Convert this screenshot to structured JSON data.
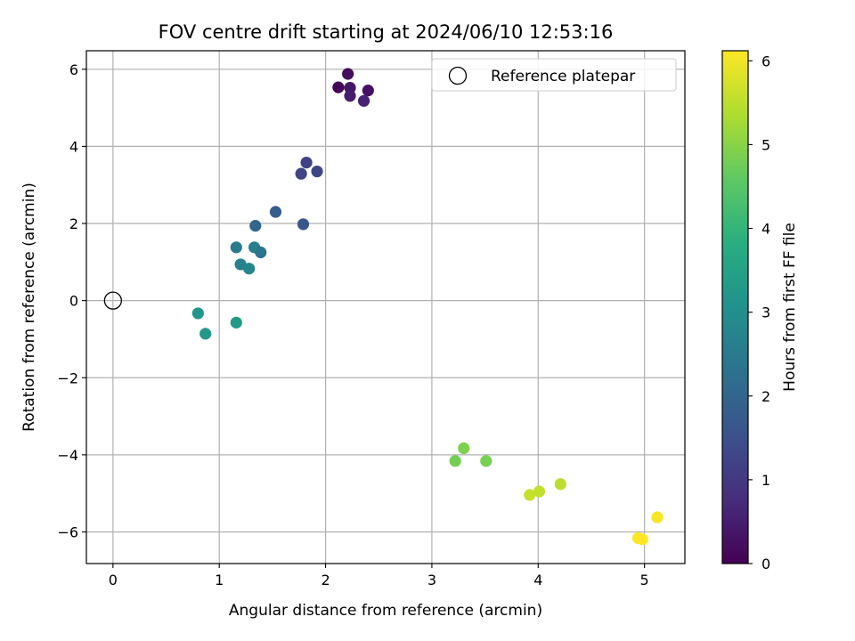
{
  "chart_data": {
    "type": "scatter",
    "title": "FOV centre drift starting at 2024/06/10 12:53:16",
    "xlabel": "Angular distance from reference (arcmin)",
    "ylabel": "Rotation from reference (arcmin)",
    "xlim": [
      -0.25,
      5.38
    ],
    "ylim": [
      -6.82,
      6.48
    ],
    "xticks": [
      0,
      1,
      2,
      3,
      4,
      5
    ],
    "yticks": [
      -6,
      -4,
      -2,
      0,
      2,
      4,
      6
    ],
    "xtick_labels": [
      "0",
      "1",
      "2",
      "3",
      "4",
      "5"
    ],
    "ytick_labels": [
      "−6",
      "−4",
      "−2",
      "0",
      "2",
      "4",
      "6"
    ],
    "grid": true,
    "legend": {
      "position": "top-right",
      "label": "Reference platepar"
    },
    "reference_point": {
      "x": 0,
      "y": 0
    },
    "colormap": "viridis",
    "colorbar": {
      "label": "Hours from first FF file",
      "range": [
        0,
        6.12
      ],
      "ticks": [
        0,
        1,
        2,
        3,
        4,
        5,
        6
      ],
      "tick_labels": [
        "0",
        "1",
        "2",
        "3",
        "4",
        "5",
        "6"
      ]
    },
    "points": [
      {
        "x": 2.12,
        "y": 5.53,
        "hours": 0.05
      },
      {
        "x": 2.21,
        "y": 5.88,
        "hours": 0.2
      },
      {
        "x": 2.23,
        "y": 5.52,
        "hours": 0.35
      },
      {
        "x": 2.4,
        "y": 5.45,
        "hours": 0.3
      },
      {
        "x": 2.23,
        "y": 5.31,
        "hours": 0.5
      },
      {
        "x": 2.36,
        "y": 5.18,
        "hours": 0.6
      },
      {
        "x": 1.82,
        "y": 3.58,
        "hours": 1.2
      },
      {
        "x": 1.92,
        "y": 3.35,
        "hours": 1.3
      },
      {
        "x": 1.77,
        "y": 3.29,
        "hours": 1.25
      },
      {
        "x": 1.53,
        "y": 2.3,
        "hours": 1.8
      },
      {
        "x": 1.79,
        "y": 1.98,
        "hours": 1.6
      },
      {
        "x": 1.34,
        "y": 1.94,
        "hours": 2.0
      },
      {
        "x": 1.16,
        "y": 1.38,
        "hours": 2.5
      },
      {
        "x": 1.33,
        "y": 1.38,
        "hours": 2.6
      },
      {
        "x": 1.39,
        "y": 1.25,
        "hours": 2.4
      },
      {
        "x": 1.2,
        "y": 0.94,
        "hours": 2.7
      },
      {
        "x": 1.28,
        "y": 0.83,
        "hours": 2.8
      },
      {
        "x": 0.8,
        "y": -0.33,
        "hours": 3.2
      },
      {
        "x": 1.16,
        "y": -0.57,
        "hours": 3.3
      },
      {
        "x": 0.87,
        "y": -0.86,
        "hours": 3.25
      },
      {
        "x": 3.3,
        "y": -3.83,
        "hours": 4.9
      },
      {
        "x": 3.22,
        "y": -4.16,
        "hours": 4.8
      },
      {
        "x": 3.51,
        "y": -4.16,
        "hours": 4.85
      },
      {
        "x": 4.21,
        "y": -4.76,
        "hours": 5.5
      },
      {
        "x": 4.01,
        "y": -4.95,
        "hours": 5.55
      },
      {
        "x": 3.92,
        "y": -5.04,
        "hours": 5.6
      },
      {
        "x": 5.12,
        "y": -5.62,
        "hours": 6.05
      },
      {
        "x": 4.94,
        "y": -6.16,
        "hours": 6.1
      },
      {
        "x": 4.98,
        "y": -6.19,
        "hours": 6.12
      }
    ]
  }
}
